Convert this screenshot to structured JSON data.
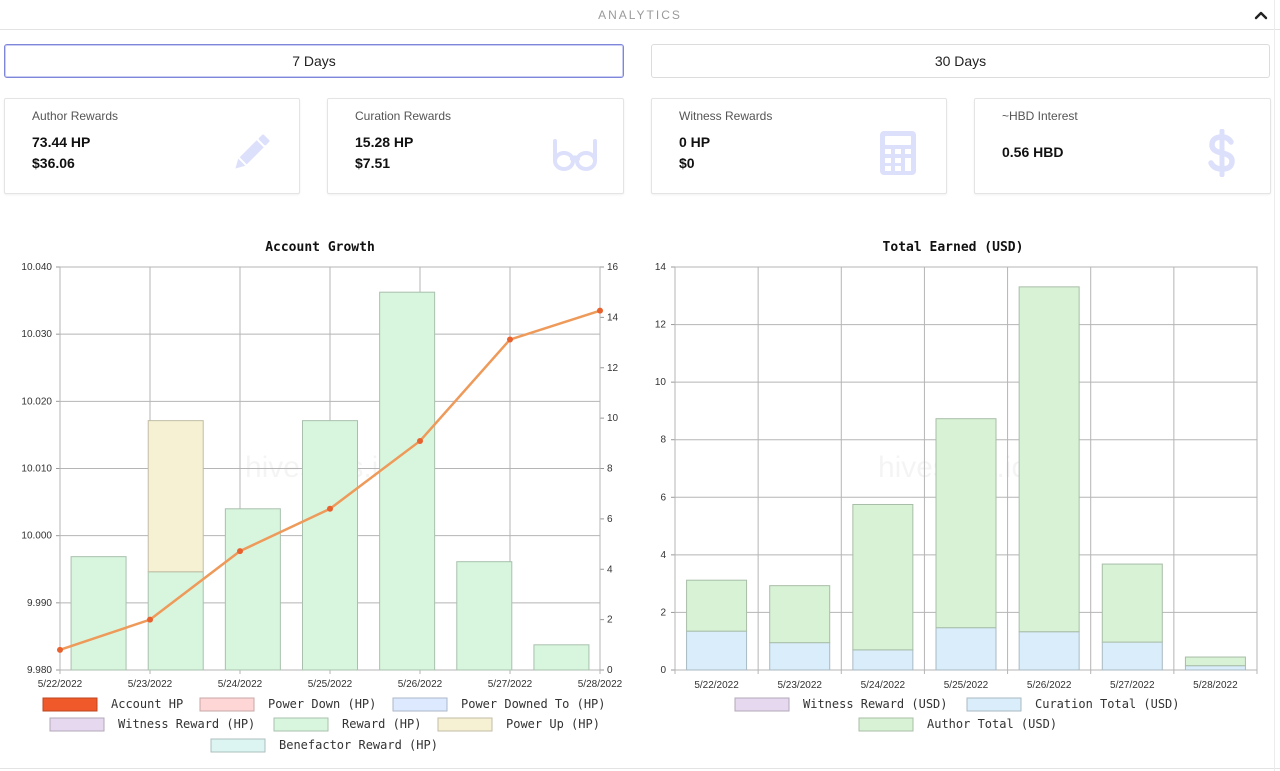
{
  "header": {
    "title": "ANALYTICS"
  },
  "periods": [
    {
      "label": "7 Days",
      "active": true
    },
    {
      "label": "30 Days",
      "active": false
    }
  ],
  "cards": [
    {
      "label": "Author Rewards",
      "v1": "73.44 HP",
      "v2": "$36.06",
      "icon": "pencil-icon"
    },
    {
      "label": "Curation Rewards",
      "v1": "15.28 HP",
      "v2": "$7.51",
      "icon": "glasses-icon"
    },
    {
      "label": "Witness Rewards",
      "v1": "0 HP",
      "v2": "$0",
      "icon": "calculator-icon"
    },
    {
      "label": "~HBD Interest",
      "v1": "0.56 HBD",
      "icon": "dollar-icon"
    }
  ],
  "colors": {
    "accent": "#7d86d8",
    "icon": "#dde0fb",
    "line": "#ee9a5a",
    "line_point": "#e8622f"
  },
  "watermark": "hivestats.io",
  "chart_data": [
    {
      "type": "bar",
      "title": "Account Growth",
      "categories": [
        "5/22/2022",
        "5/23/2022",
        "5/24/2022",
        "5/25/2022",
        "5/26/2022",
        "5/27/2022",
        "5/28/2022"
      ],
      "y_left": {
        "ylim": [
          9.98,
          10.04
        ],
        "ticks": [
          "10.040",
          "10.030",
          "10.020",
          "10.010",
          "10.000",
          "9.990",
          "9.980"
        ]
      },
      "y_right": {
        "ylim": [
          0,
          16
        ],
        "ticks": [
          "16",
          "14",
          "12",
          "10",
          "8",
          "6",
          "4",
          "2",
          "0"
        ]
      },
      "series": [
        {
          "name": "Account HP",
          "type": "line",
          "axis": "left",
          "color": "#f05a2b",
          "values": [
            9.983,
            9.9875,
            9.9977,
            10.004,
            10.0141,
            10.0292,
            10.0335
          ]
        },
        {
          "name": "Power Down (HP)",
          "type": "bar",
          "color": "#ffd6d6",
          "values": [
            0,
            0,
            0,
            0,
            0,
            0,
            0
          ]
        },
        {
          "name": "Power Downed To (HP)",
          "type": "bar",
          "color": "#dde9ff",
          "values": [
            0,
            0,
            0,
            0,
            0,
            0,
            0
          ]
        },
        {
          "name": "Witness Reward (HP)",
          "type": "bar",
          "color": "#e6d8ee",
          "values": [
            0,
            0,
            0,
            0,
            0,
            0,
            0
          ]
        },
        {
          "name": "Reward (HP)",
          "type": "bar",
          "color": "#d8f6de",
          "values": [
            4.5,
            3.9,
            6.4,
            9.9,
            15.0,
            4.3,
            1.0
          ]
        },
        {
          "name": "Power Up (HP)",
          "type": "bar",
          "color": "#f6f1d3",
          "values": [
            0,
            6.0,
            0,
            0,
            0,
            0,
            0
          ]
        },
        {
          "name": "Benefactor Reward (HP)",
          "type": "bar",
          "color": "#dcf5f3",
          "values": [
            0,
            0,
            0,
            0,
            0,
            0,
            0
          ]
        }
      ],
      "legend": "bottom"
    },
    {
      "type": "bar",
      "title": "Total Earned (USD)",
      "categories": [
        "5/22/2022",
        "5/23/2022",
        "5/24/2022",
        "5/25/2022",
        "5/26/2022",
        "5/27/2022",
        "5/28/2022"
      ],
      "ylim": [
        0,
        14
      ],
      "ticks": [
        "14",
        "12",
        "10",
        "8",
        "6",
        "4",
        "2",
        "0"
      ],
      "series": [
        {
          "name": "Witness Reward (USD)",
          "color": "#e6d8ee",
          "values": [
            0,
            0,
            0,
            0,
            0,
            0,
            0
          ]
        },
        {
          "name": "Curation Total (USD)",
          "color": "#d9eefa",
          "values": [
            1.35,
            0.95,
            0.7,
            1.47,
            1.33,
            0.97,
            0.15
          ]
        },
        {
          "name": "Author Total (USD)",
          "color": "#d8f2d6",
          "values": [
            1.77,
            1.98,
            5.05,
            7.26,
            11.98,
            2.71,
            0.3
          ]
        }
      ],
      "stacked": true,
      "legend": "bottom"
    }
  ]
}
